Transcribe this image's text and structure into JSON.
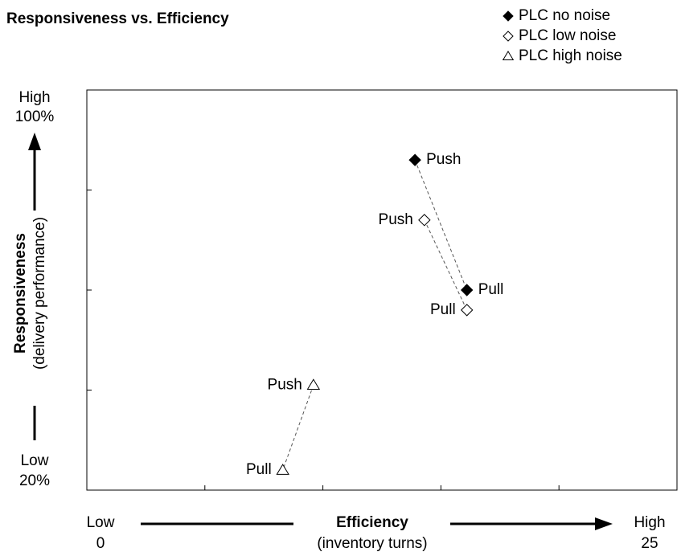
{
  "chart_data": {
    "type": "scatter",
    "title": "Responsiveness vs. Efficiency",
    "x_label": "Efficiency",
    "x_sublabel": "(inventory turns)",
    "y_label": "Responsiveness",
    "y_sublabel": "(delivery performance)",
    "xlim": [
      0,
      25
    ],
    "ylim": [
      20,
      100
    ],
    "ylim_labels": [
      "20%",
      "100%"
    ],
    "end_words": [
      "Low",
      "High"
    ],
    "xticks": [
      5,
      10,
      15,
      20
    ],
    "yticks": [
      40,
      60,
      80
    ],
    "legend": "top-right",
    "series": [
      {
        "name": "PLC no noise",
        "marker": "diamond",
        "filled": true,
        "color": "#000000",
        "labels": [
          "Push",
          "Pull"
        ],
        "x": [
          13.9,
          16.1
        ],
        "values": [
          86,
          60
        ]
      },
      {
        "name": "PLC low noise",
        "marker": "diamond",
        "filled": false,
        "color": "#000000",
        "labels": [
          "Push",
          "Pull"
        ],
        "x": [
          14.3,
          16.1
        ],
        "values": [
          74,
          56
        ]
      },
      {
        "name": "PLC high noise",
        "marker": "triangle",
        "filled": false,
        "color": "#000000",
        "labels": [
          "Push",
          "Pull"
        ],
        "x": [
          9.6,
          8.3
        ],
        "values": [
          41,
          24
        ]
      }
    ]
  }
}
